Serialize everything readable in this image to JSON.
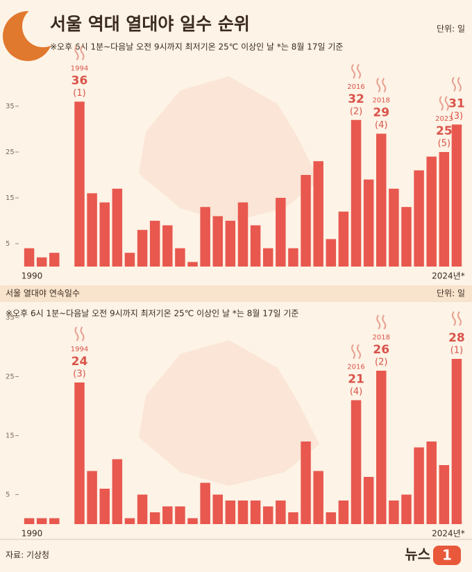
{
  "chart_data": [
    {
      "type": "bar",
      "title": "서울 역대 열대야 일수 순위",
      "unit": "단위: 일",
      "note": "※오후 6시 1분~다음날 오전 9시까지 최저기온 25℃ 이상인 날 *는 8월 17일 기준",
      "categories": [
        "1990",
        null,
        null,
        null,
        "1994",
        null,
        null,
        null,
        null,
        null,
        null,
        null,
        null,
        null,
        null,
        null,
        null,
        null,
        null,
        null,
        null,
        null,
        null,
        null,
        null,
        null,
        "2016",
        null,
        "2018",
        null,
        null,
        null,
        null,
        "2023",
        "2024년*"
      ],
      "values": [
        4,
        2,
        3,
        0,
        36,
        16,
        14,
        17,
        3,
        8,
        10,
        9,
        4,
        1,
        13,
        11,
        10,
        14,
        9,
        4,
        15,
        4,
        20,
        23,
        6,
        12,
        32,
        19,
        29,
        17,
        13,
        21,
        24,
        25,
        31
      ],
      "ranks": [
        null,
        null,
        null,
        null,
        "(1)",
        null,
        null,
        null,
        null,
        null,
        null,
        null,
        null,
        null,
        null,
        null,
        null,
        null,
        null,
        null,
        null,
        null,
        null,
        null,
        null,
        null,
        "(2)",
        null,
        "(4)",
        null,
        null,
        null,
        null,
        "(5)",
        "(3)"
      ],
      "color": "#e8584f",
      "ylim": [
        0,
        40
      ],
      "yticks": [
        5,
        15,
        25,
        35
      ]
    },
    {
      "type": "bar",
      "title": "서울 열대야 연속일수",
      "unit": "단위: 일",
      "note": "※오후 6시 1분~다음날 오전 9시까지 최저기온 25℃ 이상인 날 *는 8월 17일 기준",
      "categories": [
        "1990",
        null,
        null,
        null,
        "1994",
        null,
        null,
        null,
        null,
        null,
        null,
        null,
        null,
        null,
        null,
        null,
        null,
        null,
        null,
        null,
        null,
        null,
        null,
        null,
        null,
        null,
        "2016",
        null,
        "2018",
        null,
        null,
        null,
        null,
        null,
        "2024년*"
      ],
      "values": [
        1,
        1,
        1,
        0,
        24,
        9,
        6,
        11,
        1,
        5,
        2,
        3,
        3,
        1,
        7,
        5,
        4,
        4,
        4,
        3,
        4,
        2,
        14,
        9,
        2,
        4,
        21,
        8,
        26,
        4,
        5,
        13,
        14,
        10,
        28
      ],
      "ranks": [
        null,
        null,
        null,
        null,
        "(3)",
        null,
        null,
        null,
        null,
        null,
        null,
        null,
        null,
        null,
        null,
        null,
        null,
        null,
        null,
        null,
        null,
        null,
        null,
        null,
        null,
        null,
        "(4)",
        null,
        "(2)",
        null,
        null,
        null,
        null,
        null,
        "(1)"
      ],
      "color": "#e8584f",
      "ylim": [
        0,
        30
      ],
      "yticks": [
        5,
        15,
        25,
        35
      ]
    }
  ],
  "source": "자료: 기상청",
  "logo": {
    "word": "뉴스",
    "number": "1"
  }
}
